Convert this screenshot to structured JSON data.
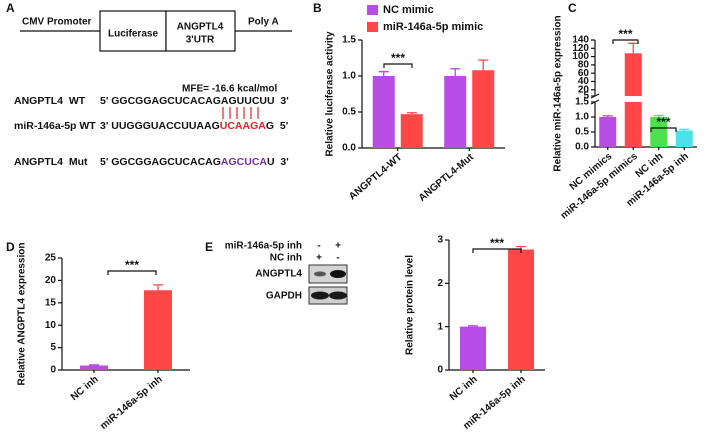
{
  "panels": [
    "A",
    "B",
    "C",
    "D",
    "E"
  ],
  "construct": {
    "promoter": "CMV Promoter",
    "luciferase": "Luciferase",
    "utr": [
      "ANGPTL4",
      "3'UTR"
    ],
    "polya": "Poly A"
  },
  "mfe": "MFE= -16.6 kcal/mol",
  "sequences": [
    {
      "label": "ANGPTL4  WT",
      "seq": "5' GGCGGAGCUCACAGAGUUCUU  3'"
    },
    {
      "label": "miR-146a-5p WT",
      "seq_start": "3' UUGGGUACCUUAAG",
      "seed": "UCAAGA",
      "seq_end": "G  5'"
    },
    {
      "label": "ANGPTL4  Mut",
      "seq_start": "5' GGCGGAGCUCACAG",
      "mutated": "AGCUCA",
      "seq_end": "U  3'"
    }
  ],
  "blot": {
    "rows": [
      "miR-146a-5p inh",
      "NC inh"
    ],
    "signs": [
      [
        "-",
        "+"
      ],
      [
        "+",
        "-"
      ]
    ],
    "bands": [
      "ANGPTL4",
      "GAPDH"
    ]
  },
  "chart_data": [
    {
      "type": "bar",
      "y_label": "Relative luciferase activity",
      "categories": [
        "ANGPTL4-WT",
        "ANGPTL4-Mut"
      ],
      "series": [
        {
          "name": "NC mimic",
          "color": "#b84de6",
          "values": [
            1.0,
            1.0
          ],
          "errors": [
            0.06,
            0.1
          ]
        },
        {
          "name": "miR-146a-5p mimic",
          "color": "#ff4747",
          "values": [
            0.47,
            1.08
          ],
          "errors": [
            0.02,
            0.14
          ]
        }
      ],
      "ylim": [
        0,
        1.5
      ],
      "yticks": [
        {
          "value": 0,
          "label": "0.0"
        },
        {
          "value": 0.5,
          "label": "0.5"
        },
        {
          "value": 1.0,
          "label": "1.0"
        },
        {
          "value": 1.5,
          "label": "1.5"
        }
      ],
      "significance": [
        "***"
      ]
    },
    {
      "type": "bar",
      "y_label": "Relative miR-146a-5p expression",
      "categories": [
        "NC mimics",
        "miR-146a-5p mimics",
        "NC inh",
        "miR-146a-5p inh"
      ],
      "values": [
        1.0,
        108,
        1.0,
        0.55
      ],
      "errors": [
        0.04,
        24,
        0.05,
        0.04
      ],
      "colors": [
        "#b84de6",
        "#ff4747",
        "#4de04d",
        "#4de0e6"
      ],
      "y_segments": [
        {
          "ylim": [
            0,
            1.5
          ],
          "yticks": [
            {
              "value": 0,
              "label": "0.0"
            },
            {
              "value": 0.5,
              "label": "0.5"
            },
            {
              "value": 1.0,
              "label": "1.0"
            },
            {
              "value": 1.5,
              "label": "1.5"
            }
          ]
        },
        {
          "ylim": [
            5,
            140
          ],
          "yticks": [
            5,
            20,
            40,
            60,
            80,
            100,
            120,
            140
          ]
        }
      ],
      "significance": [
        "***",
        "***"
      ]
    },
    {
      "type": "bar",
      "y_label": "Relative ANGPTL4 expression",
      "categories": [
        "NC inh",
        "miR-146a-5p inh"
      ],
      "values": [
        1.0,
        17.8
      ],
      "errors": [
        0.15,
        1.2
      ],
      "colors": [
        "#b84de6",
        "#ff4747"
      ],
      "ylim": [
        0,
        25
      ],
      "yticks": [
        0,
        5,
        10,
        15,
        20,
        25
      ],
      "significance": [
        "***"
      ]
    },
    {
      "type": "bar",
      "y_label": "Relative protein level",
      "categories": [
        "NC inh",
        "miR-146a-5p inh"
      ],
      "values": [
        1.0,
        2.78
      ],
      "errors": [
        0.02,
        0.07
      ],
      "colors": [
        "#b84de6",
        "#ff4747"
      ],
      "ylim": [
        0,
        3
      ],
      "yticks": [
        0,
        1,
        2,
        3
      ],
      "significance": [
        "***"
      ]
    }
  ]
}
